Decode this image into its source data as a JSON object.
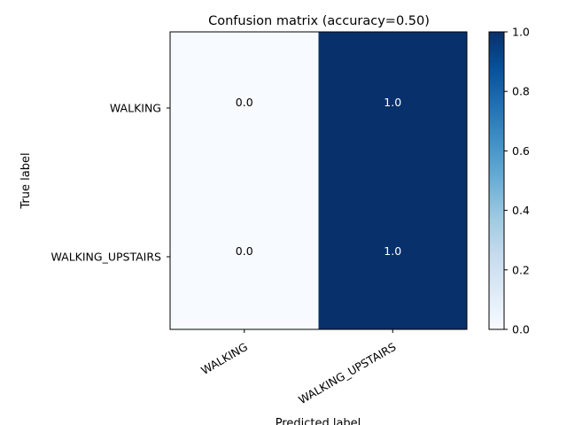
{
  "chart_data": {
    "type": "heatmap",
    "title": "Confusion matrix (accuracy=0.50)",
    "xlabel": "Predicted label",
    "ylabel": "True label",
    "x_categories": [
      "WALKING",
      "WALKING_UPSTAIRS"
    ],
    "y_categories": [
      "WALKING",
      "WALKING_UPSTAIRS"
    ],
    "values": [
      [
        0.0,
        1.0
      ],
      [
        0.0,
        1.0
      ]
    ],
    "value_labels": [
      [
        "0.0",
        "1.0"
      ],
      [
        "0.0",
        "1.0"
      ]
    ],
    "colormap": "Blues",
    "color_low": "#f7fbff",
    "color_high": "#08306b",
    "clim": [
      0.0,
      1.0
    ],
    "colorbar_ticks": [
      "0.0",
      "0.2",
      "0.4",
      "0.6",
      "0.8",
      "1.0"
    ],
    "grid": false
  }
}
